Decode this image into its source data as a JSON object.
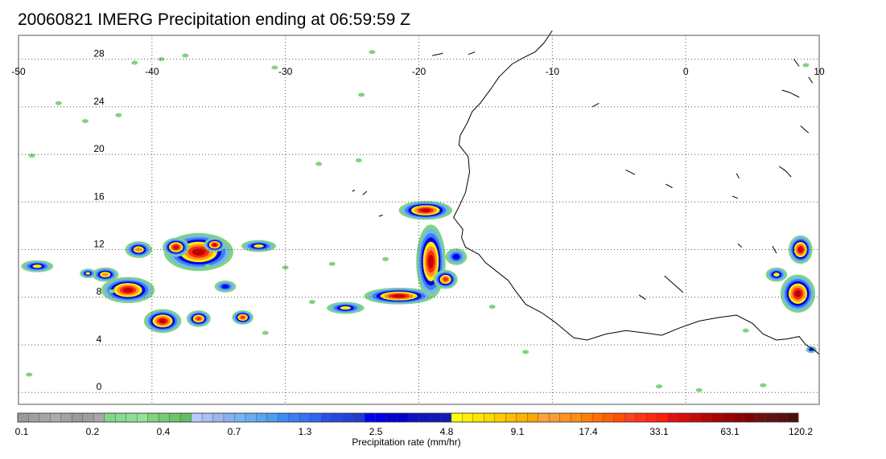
{
  "title": "20060821 IMERG Precipitation ending at 06:59:59 Z",
  "map": {
    "lon_range": [
      -50,
      10
    ],
    "lat_range": [
      -1,
      30
    ],
    "lon_ticks": [
      "-50",
      "-40",
      "-30",
      "-20",
      "-10",
      "0",
      "10"
    ],
    "lat_ticks": [
      "0",
      "4",
      "8",
      "12",
      "16",
      "20",
      "24",
      "28"
    ],
    "grid": "dotted",
    "coastline_color": "#000000"
  },
  "colorbar": {
    "label": "Precipitation rate (mm/hr)",
    "tick_labels": [
      "0.1",
      "0.2",
      "0.4",
      "0.7",
      "1.3",
      "2.5",
      "4.8",
      "9.1",
      "17.4",
      "33.1",
      "63.1",
      "120.2"
    ],
    "colors": [
      "#9a9a9a",
      "#a0a0a0",
      "#a6a6a6",
      "#acacac",
      "#a3a3a3",
      "#999999",
      "#9d9d9d",
      "#a8a8a8",
      "#7fd98a",
      "#86dc8f",
      "#8ddf95",
      "#93e29a",
      "#7fd47e",
      "#76cc76",
      "#6cc46c",
      "#63bc63",
      "#b7c9f4",
      "#a9c0f2",
      "#9bb7f0",
      "#8daeee",
      "#74b6f0",
      "#66aef0",
      "#58a6f0",
      "#4a9ef0",
      "#3f8bf2",
      "#3a7ef2",
      "#3571f2",
      "#3064f2",
      "#2a4ee8",
      "#2648e0",
      "#2242d8",
      "#1e3cd0",
      "#0000f0",
      "#0000e4",
      "#0000d8",
      "#0000cc",
      "#0a10c8",
      "#0c14c0",
      "#0e18b8",
      "#101cb0",
      "#ffff00",
      "#fff200",
      "#ffe600",
      "#ffd900",
      "#ffcc00",
      "#ffbf00",
      "#ffb300",
      "#ffa600",
      "#ffa040",
      "#ff9a30",
      "#ff9420",
      "#ff8e10",
      "#ff8000",
      "#ff7000",
      "#ff6000",
      "#ff5000",
      "#ff4020",
      "#ff3418",
      "#ff2810",
      "#ff1c08",
      "#e61010",
      "#d80c0c",
      "#ca0808",
      "#bc0404",
      "#aa0000",
      "#9c0000",
      "#8e0000",
      "#800000",
      "#6e1010",
      "#621010",
      "#561010",
      "#4a1010"
    ]
  },
  "precip_cells": [
    {
      "lon": -41.8,
      "lat": 8.6,
      "rx": 2.0,
      "ry": 1.1,
      "level": 10
    },
    {
      "lon": -36.5,
      "lat": 11.8,
      "rx": 2.6,
      "ry": 1.6,
      "level": 9
    },
    {
      "lon": -38.2,
      "lat": 12.2,
      "rx": 1.0,
      "ry": 0.8,
      "level": 8
    },
    {
      "lon": -35.3,
      "lat": 12.4,
      "rx": 0.8,
      "ry": 0.6,
      "level": 8
    },
    {
      "lon": -39.2,
      "lat": 6.0,
      "rx": 1.4,
      "ry": 1.0,
      "level": 8
    },
    {
      "lon": -36.5,
      "lat": 6.2,
      "rx": 0.9,
      "ry": 0.7,
      "level": 7
    },
    {
      "lon": -33.2,
      "lat": 6.3,
      "rx": 0.8,
      "ry": 0.6,
      "level": 7
    },
    {
      "lon": -43.5,
      "lat": 9.9,
      "rx": 1.0,
      "ry": 0.6,
      "level": 6
    },
    {
      "lon": -41.0,
      "lat": 12.0,
      "rx": 1.0,
      "ry": 0.7,
      "level": 6
    },
    {
      "lon": -32.0,
      "lat": 12.3,
      "rx": 1.3,
      "ry": 0.5,
      "level": 5
    },
    {
      "lon": -48.6,
      "lat": 10.6,
      "rx": 1.2,
      "ry": 0.5,
      "level": 5
    },
    {
      "lon": -44.8,
      "lat": 10.0,
      "rx": 0.6,
      "ry": 0.4,
      "level": 5
    },
    {
      "lon": -34.5,
      "lat": 8.9,
      "rx": 0.8,
      "ry": 0.5,
      "level": 4
    },
    {
      "lon": -19.1,
      "lat": 11.0,
      "rx": 1.1,
      "ry": 3.1,
      "level": 10
    },
    {
      "lon": -19.5,
      "lat": 15.3,
      "rx": 2.0,
      "ry": 0.8,
      "level": 8
    },
    {
      "lon": -21.5,
      "lat": 8.1,
      "rx": 2.6,
      "ry": 0.7,
      "level": 8
    },
    {
      "lon": -18.0,
      "lat": 9.5,
      "rx": 0.9,
      "ry": 0.8,
      "level": 7
    },
    {
      "lon": -25.5,
      "lat": 7.1,
      "rx": 1.4,
      "ry": 0.5,
      "level": 5
    },
    {
      "lon": -17.2,
      "lat": 11.4,
      "rx": 0.8,
      "ry": 0.7,
      "level": 4
    },
    {
      "lon": 8.6,
      "lat": 12.0,
      "rx": 0.9,
      "ry": 1.2,
      "level": 9
    },
    {
      "lon": 8.4,
      "lat": 8.3,
      "rx": 1.3,
      "ry": 1.6,
      "level": 9
    },
    {
      "lon": 6.8,
      "lat": 9.9,
      "rx": 0.8,
      "ry": 0.6,
      "level": 5
    },
    {
      "lon": 9.4,
      "lat": 3.6,
      "rx": 0.4,
      "ry": 0.3,
      "level": 4
    }
  ],
  "scatter_cells": [
    {
      "lon": -39.3,
      "lat": 28.0
    },
    {
      "lon": -41.3,
      "lat": 27.7
    },
    {
      "lon": -37.5,
      "lat": 28.3
    },
    {
      "lon": -30.8,
      "lat": 27.3
    },
    {
      "lon": -23.5,
      "lat": 28.6
    },
    {
      "lon": -24.3,
      "lat": 25.0
    },
    {
      "lon": -47.0,
      "lat": 24.3
    },
    {
      "lon": -45.0,
      "lat": 22.8
    },
    {
      "lon": -42.5,
      "lat": 23.3
    },
    {
      "lon": -49.0,
      "lat": 19.9
    },
    {
      "lon": -24.5,
      "lat": 19.5
    },
    {
      "lon": -27.5,
      "lat": 19.2
    },
    {
      "lon": -26.5,
      "lat": 10.8
    },
    {
      "lon": -22.5,
      "lat": 11.2
    },
    {
      "lon": -49.2,
      "lat": 1.5
    },
    {
      "lon": -12.0,
      "lat": 3.4
    },
    {
      "lon": -2.0,
      "lat": 0.5
    },
    {
      "lon": 1.0,
      "lat": 0.2
    },
    {
      "lon": 5.8,
      "lat": 0.6
    },
    {
      "lon": 4.5,
      "lat": 5.2
    },
    {
      "lon": -31.5,
      "lat": 5.0
    },
    {
      "lon": -28.0,
      "lat": 7.6
    },
    {
      "lon": -35.8,
      "lat": 10.6
    },
    {
      "lon": -14.5,
      "lat": 7.2
    },
    {
      "lon": 9.0,
      "lat": 27.5
    },
    {
      "lon": -43.0,
      "lat": 8.5
    },
    {
      "lon": -30.0,
      "lat": 10.5
    }
  ],
  "coastline": [
    [
      -10.0,
      30.4
    ],
    [
      -10.6,
      29.4
    ],
    [
      -11.3,
      28.6
    ],
    [
      -12.2,
      28.1
    ],
    [
      -13.0,
      27.6
    ],
    [
      -14.0,
      26.5
    ],
    [
      -14.6,
      25.5
    ],
    [
      -15.4,
      24.3
    ],
    [
      -16.0,
      23.6
    ],
    [
      -16.4,
      22.6
    ],
    [
      -16.9,
      21.6
    ],
    [
      -17.0,
      20.8
    ],
    [
      -16.3,
      19.8
    ],
    [
      -16.2,
      18.5
    ],
    [
      -16.5,
      16.8
    ],
    [
      -17.0,
      15.6
    ],
    [
      -17.4,
      14.7
    ],
    [
      -16.7,
      13.7
    ],
    [
      -16.8,
      13.0
    ],
    [
      -16.5,
      12.2
    ],
    [
      -15.5,
      11.6
    ],
    [
      -15.0,
      10.9
    ],
    [
      -14.2,
      10.2
    ],
    [
      -13.3,
      9.4
    ],
    [
      -12.8,
      8.6
    ],
    [
      -12.0,
      7.4
    ],
    [
      -10.8,
      6.7
    ],
    [
      -9.8,
      5.9
    ],
    [
      -8.4,
      4.6
    ],
    [
      -7.4,
      4.4
    ],
    [
      -6.0,
      4.9
    ],
    [
      -4.5,
      5.2
    ],
    [
      -3.0,
      5.0
    ],
    [
      -1.8,
      4.8
    ],
    [
      -0.5,
      5.4
    ],
    [
      1.0,
      6.0
    ],
    [
      2.5,
      6.3
    ],
    [
      3.8,
      6.5
    ],
    [
      5.0,
      5.8
    ],
    [
      5.8,
      4.9
    ],
    [
      6.8,
      4.4
    ],
    [
      7.6,
      4.5
    ],
    [
      8.5,
      4.7
    ],
    [
      9.0,
      4.0
    ],
    [
      9.6,
      3.6
    ],
    [
      10.0,
      3.2
    ]
  ],
  "inland_water": [
    [
      [
        -7.0,
        24.0
      ],
      [
        -6.5,
        24.3
      ]
    ],
    [
      [
        -4.5,
        18.7
      ],
      [
        -3.8,
        18.3
      ]
    ],
    [
      [
        7.0,
        19.0
      ],
      [
        7.5,
        18.6
      ],
      [
        7.9,
        18.1
      ]
    ],
    [
      [
        3.5,
        16.5
      ],
      [
        3.9,
        16.3
      ]
    ],
    [
      [
        4.0,
        18.0
      ],
      [
        3.8,
        18.4
      ]
    ],
    [
      [
        -1.5,
        17.5
      ],
      [
        -1.0,
        17.2
      ]
    ],
    [
      [
        -19.0,
        28.3
      ],
      [
        -18.2,
        28.5
      ]
    ],
    [
      [
        -16.3,
        28.4
      ],
      [
        -15.8,
        28.6
      ]
    ],
    [
      [
        -23.0,
        14.8
      ],
      [
        -22.7,
        14.9
      ]
    ],
    [
      [
        -24.2,
        16.6
      ],
      [
        -23.9,
        16.9
      ]
    ],
    [
      [
        -25.0,
        16.9
      ],
      [
        -24.8,
        17.0
      ]
    ],
    [
      [
        7.2,
        25.4
      ],
      [
        7.8,
        25.2
      ],
      [
        8.5,
        24.8
      ]
    ],
    [
      [
        8.6,
        22.4
      ],
      [
        9.2,
        21.8
      ]
    ],
    [
      [
        -1.6,
        9.8
      ],
      [
        -1.0,
        9.2
      ],
      [
        -0.2,
        8.4
      ]
    ],
    [
      [
        -3.5,
        8.2
      ],
      [
        -3.0,
        7.8
      ]
    ],
    [
      [
        3.9,
        12.5
      ],
      [
        4.2,
        12.2
      ]
    ],
    [
      [
        6.5,
        12.3
      ],
      [
        6.8,
        11.7
      ]
    ],
    [
      [
        8.1,
        28.0
      ],
      [
        8.5,
        27.4
      ]
    ],
    [
      [
        9.2,
        26.5
      ],
      [
        9.5,
        26.0
      ]
    ]
  ]
}
